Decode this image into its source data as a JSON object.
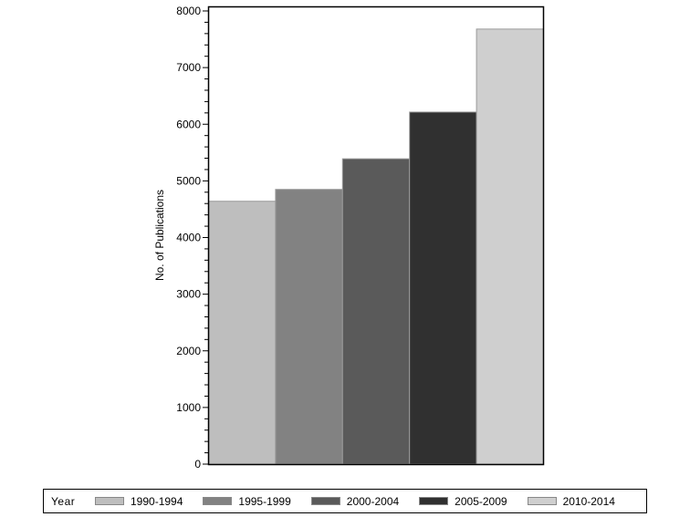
{
  "chart_data": {
    "type": "bar",
    "title": "",
    "xlabel": "",
    "ylabel": "No. of Publications",
    "ylim": [
      0,
      8000
    ],
    "yticks": [
      0,
      1000,
      2000,
      3000,
      4000,
      5000,
      6000,
      7000,
      8000
    ],
    "grid": false,
    "legend_position": "bottom",
    "legend_title": "Year",
    "categories": [
      "1990-1994",
      "1995-1999",
      "2000-2004",
      "2005-2009",
      "2010-2014"
    ],
    "values": [
      4640,
      4850,
      5390,
      6215,
      7680
    ],
    "colors": [
      "#bebebe",
      "#828282",
      "#5a5a5a",
      "#303030",
      "#cfcfcf"
    ]
  },
  "legend": {
    "title": "Year",
    "items": [
      {
        "label": "1990-1994",
        "color": "#bebebe"
      },
      {
        "label": "1995-1999",
        "color": "#828282"
      },
      {
        "label": "2000-2004",
        "color": "#5a5a5a"
      },
      {
        "label": "2005-2009",
        "color": "#303030"
      },
      {
        "label": "2010-2014",
        "color": "#cfcfcf"
      }
    ]
  }
}
